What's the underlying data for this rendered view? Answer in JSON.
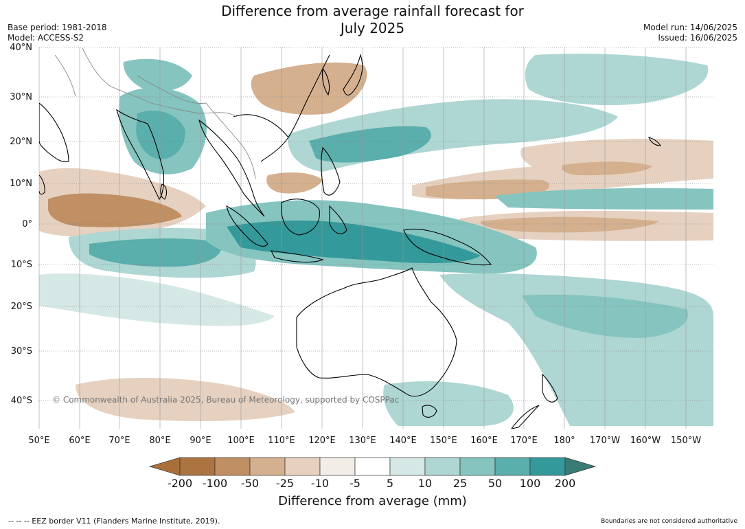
{
  "title_line1": "Difference from average rainfall forecast for",
  "title_line2": "July 2025",
  "base_period": "Base period: 1981-2018",
  "model": "Model: ACCESS-S2",
  "model_run": "Model run: 14/06/2025",
  "issued": "Issued: 16/06/2025",
  "copyright": "© Commonwealth of Australia 2025, Bureau of Meteorology, supported by COSPPac",
  "lat_labels": [
    "40°N",
    "30°N",
    "20°N",
    "10°N",
    "0°",
    "10°S",
    "20°S",
    "30°S",
    "40°S"
  ],
  "lon_labels": [
    "50°E",
    "60°E",
    "70°E",
    "80°E",
    "90°E",
    "100°E",
    "110°E",
    "120°E",
    "130°E",
    "140°E",
    "150°E",
    "160°E",
    "170°E",
    "180°",
    "170°W",
    "160°W",
    "150°W"
  ],
  "colorbar": {
    "title": "Difference from average (mm)",
    "ticks": [
      "-200",
      "-100",
      "-50",
      "-25",
      "-10",
      "-5",
      "5",
      "10",
      "25",
      "50",
      "100",
      "200"
    ],
    "colors": [
      "#a86f3b",
      "#ac7440",
      "#c08f63",
      "#d4b08e",
      "#e6d1c0",
      "#f2ede7",
      "#ffffff",
      "#d5e8e6",
      "#aed6d3",
      "#85c4bf",
      "#5aaeab",
      "#34999a",
      "#397b75"
    ]
  },
  "footer_left": "--  --  -- EEZ border V11 (Flanders Marine Institute, 2019).",
  "footer_right": "Boundaries are not considered authoritative"
}
